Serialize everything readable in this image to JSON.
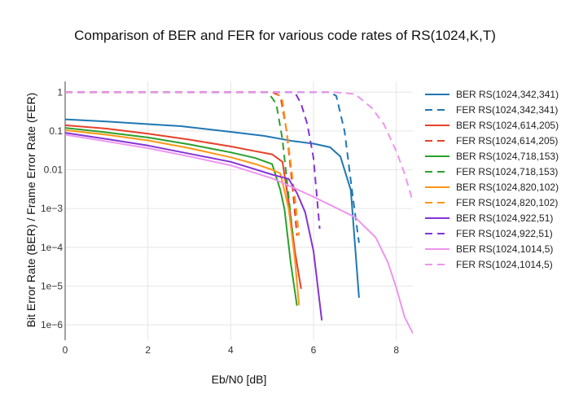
{
  "chart_data": {
    "type": "line",
    "title": "Comparison of BER and FER for various code rates of RS(1024,K,T)",
    "xlabel": "Eb/N0 [dB]",
    "ylabel": "Bit Error Rate (BER) / Frame Error Rate (FER)",
    "xlim": [
      0,
      8.4
    ],
    "ylim": [
      4e-07,
      1.9
    ],
    "yscale": "log",
    "grid": true,
    "legend_position": "right",
    "xticks": [
      0,
      2,
      4,
      6,
      8
    ],
    "xtick_labels": [
      "0",
      "2",
      "4",
      "6",
      "8"
    ],
    "yticks": [
      1,
      0.1,
      0.01,
      0.001,
      0.0001,
      1e-05,
      1e-06
    ],
    "ytick_labels": [
      "1",
      "0.1",
      "0.01",
      "1e−3",
      "1e−4",
      "1e−5",
      "1e−6"
    ],
    "series": [
      {
        "name": "BER RS(1024,342,341)",
        "color": "#1f77b4",
        "dash": "solid",
        "x": [
          0,
          1,
          2,
          2.8,
          4,
          4.8,
          5.5,
          6.0,
          6.4,
          6.65,
          6.9,
          7.1
        ],
        "y": [
          0.2,
          0.175,
          0.15,
          0.133,
          0.095,
          0.075,
          0.055,
          0.047,
          0.038,
          0.022,
          0.003,
          5e-06
        ]
      },
      {
        "name": "FER RS(1024,342,341)",
        "color": "#1f77b4",
        "dash": "dash",
        "x": [
          0,
          1,
          2,
          3,
          4,
          5,
          6,
          6.4,
          6.55,
          6.75,
          6.95,
          7.1
        ],
        "y": [
          1,
          1,
          1,
          1,
          1,
          1,
          1,
          1,
          0.8,
          0.1,
          0.002,
          0.00013
        ]
      },
      {
        "name": "BER RS(1024,614,205)",
        "color": "#e6412a",
        "dash": "solid",
        "x": [
          0,
          1,
          2,
          3,
          4,
          4.6,
          5.0,
          5.25,
          5.4,
          5.55,
          5.7
        ],
        "y": [
          0.14,
          0.115,
          0.085,
          0.06,
          0.04,
          0.03,
          0.025,
          0.016,
          0.0015,
          8e-05,
          8.5e-06
        ]
      },
      {
        "name": "FER RS(1024,614,205)",
        "color": "#e6412a",
        "dash": "dash",
        "x": [
          0,
          1,
          2,
          3,
          4,
          5.0,
          5.2,
          5.35,
          5.5,
          5.6
        ],
        "y": [
          1,
          1,
          1,
          1,
          1,
          1,
          0.8,
          0.1,
          0.003,
          0.0002
        ]
      },
      {
        "name": "BER RS(1024,718,153)",
        "color": "#2ca02c",
        "dash": "solid",
        "x": [
          0,
          1,
          2,
          3,
          4,
          4.6,
          5.0,
          5.2,
          5.3,
          5.45,
          5.6
        ],
        "y": [
          0.12,
          0.092,
          0.068,
          0.045,
          0.028,
          0.02,
          0.014,
          0.003,
          0.00095,
          4e-05,
          3.1e-06
        ]
      },
      {
        "name": "FER RS(1024,718,153)",
        "color": "#2ca02c",
        "dash": "dash",
        "x": [
          0,
          1,
          2,
          3,
          4,
          4.9,
          5.1,
          5.25,
          5.4,
          5.5
        ],
        "y": [
          1,
          1,
          1,
          1,
          1,
          1,
          0.5,
          0.06,
          0.002,
          0.0002
        ]
      },
      {
        "name": "BER RS(1024,820,102)",
        "color": "#ff9616",
        "dash": "solid",
        "x": [
          0,
          1,
          2,
          3,
          4,
          4.6,
          5.0,
          5.2,
          5.4,
          5.55,
          5.65
        ],
        "y": [
          0.105,
          0.08,
          0.057,
          0.036,
          0.021,
          0.014,
          0.01,
          0.008,
          0.001,
          5e-05,
          3.2e-06
        ]
      },
      {
        "name": "FER RS(1024,820,102)",
        "color": "#ff9616",
        "dash": "dash",
        "x": [
          0,
          1,
          2,
          3,
          4,
          5.1,
          5.25,
          5.4,
          5.55,
          5.65
        ],
        "y": [
          1,
          1,
          1,
          1,
          1,
          1,
          0.6,
          0.04,
          0.002,
          0.0002
        ]
      },
      {
        "name": "BER RS(1024,922,51)",
        "color": "#8533d6",
        "dash": "solid",
        "x": [
          0,
          1,
          2,
          3,
          4,
          4.5,
          5.0,
          5.4,
          5.6,
          5.8,
          6.0,
          6.2
        ],
        "y": [
          0.09,
          0.062,
          0.042,
          0.026,
          0.016,
          0.011,
          0.0075,
          0.0058,
          0.0025,
          0.0008,
          8e-05,
          1.3e-06
        ]
      },
      {
        "name": "FER RS(1024,922,51)",
        "color": "#8533d6",
        "dash": "dash",
        "x": [
          0,
          1,
          2,
          3,
          4,
          5,
          5.55,
          5.7,
          5.85,
          6.0,
          6.15
        ],
        "y": [
          1,
          1,
          1,
          1,
          1,
          1,
          1,
          0.5,
          0.15,
          0.02,
          0.0003
        ]
      },
      {
        "name": "BER RS(1024,1014,5)",
        "color": "#ee95ee",
        "dash": "solid",
        "x": [
          0,
          1,
          2,
          3,
          4,
          5.0,
          5.5,
          6.0,
          6.5,
          7.0,
          7.5,
          7.8,
          8.0,
          8.2,
          8.4
        ],
        "y": [
          0.08,
          0.054,
          0.036,
          0.022,
          0.013,
          0.006,
          0.0035,
          0.002,
          0.0011,
          0.0006,
          0.00018,
          4e-05,
          9e-06,
          1.6e-06,
          6e-07
        ]
      },
      {
        "name": "FER RS(1024,1014,5)",
        "color": "#ee95ee",
        "dash": "dash",
        "x": [
          0,
          1,
          2,
          3,
          4,
          5,
          6,
          6.5,
          7.0,
          7.4,
          7.7,
          8.0,
          8.2,
          8.4
        ],
        "y": [
          1,
          1,
          1,
          1,
          1,
          1,
          1,
          1,
          0.9,
          0.4,
          0.15,
          0.03,
          0.008,
          0.0015
        ]
      }
    ]
  }
}
